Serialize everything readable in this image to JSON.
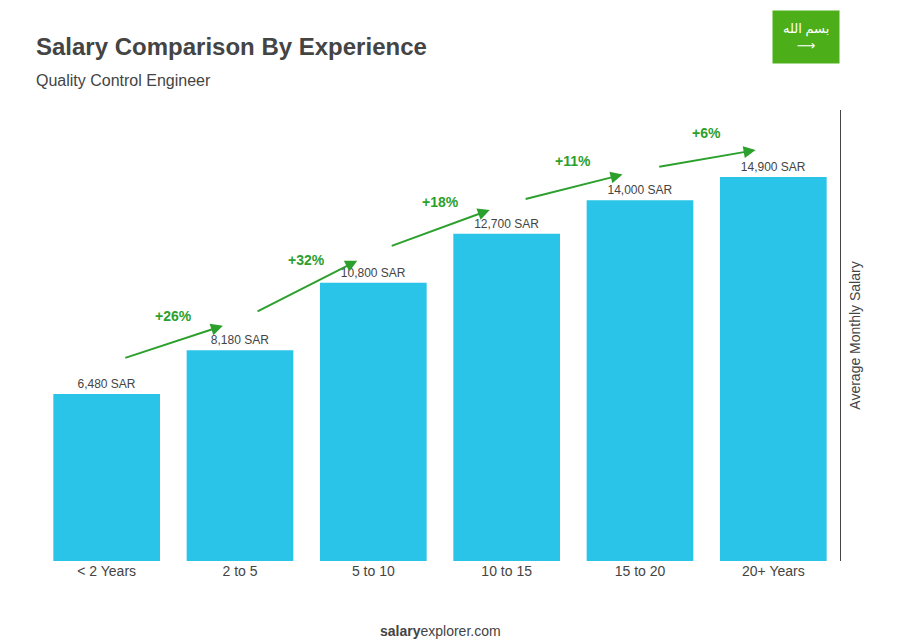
{
  "chart_data": {
    "type": "bar",
    "title": "Salary Comparison By Experience",
    "subtitle": "Quality Control Engineer",
    "categories": [
      "< 2 Years",
      "2 to 5",
      "5 to 10",
      "10 to 15",
      "15 to 20",
      "20+ Years"
    ],
    "values": [
      6480,
      8180,
      10800,
      12700,
      14000,
      14900
    ],
    "value_labels": [
      "6,480 SAR",
      "8,180 SAR",
      "10,800 SAR",
      "12,700 SAR",
      "14,000 SAR",
      "14,900 SAR"
    ],
    "data_labels": true,
    "color": "#29C4E8",
    "ylabel": "Average Monthly Salary",
    "ylim": [
      0,
      17500
    ],
    "tick_labels": "x",
    "grid": false,
    "annotations": [
      {
        "text": "+26%",
        "from": "< 2 Years",
        "to": "2 to 5",
        "color": "#2ca02c"
      },
      {
        "text": "+32%",
        "from": "2 to 5",
        "to": "5 to 10",
        "color": "#2ca02c"
      },
      {
        "text": "+18%",
        "from": "5 to 10",
        "to": "10 to 15",
        "color": "#2ca02c"
      },
      {
        "text": "+11%",
        "from": "10 to 15",
        "to": "15 to 20",
        "color": "#2ca02c"
      },
      {
        "text": "+6%",
        "from": "15 to 20",
        "to": "20+ Years",
        "color": "#2ca02c"
      },
      {
        "text": "salary"
      },
      {
        "text": "explorer.com"
      },
      {
        "text": "بسم الله",
        "color": "#4caf1a"
      },
      {
        "text": "⟶",
        "color": "#4caf1a"
      }
    ]
  }
}
